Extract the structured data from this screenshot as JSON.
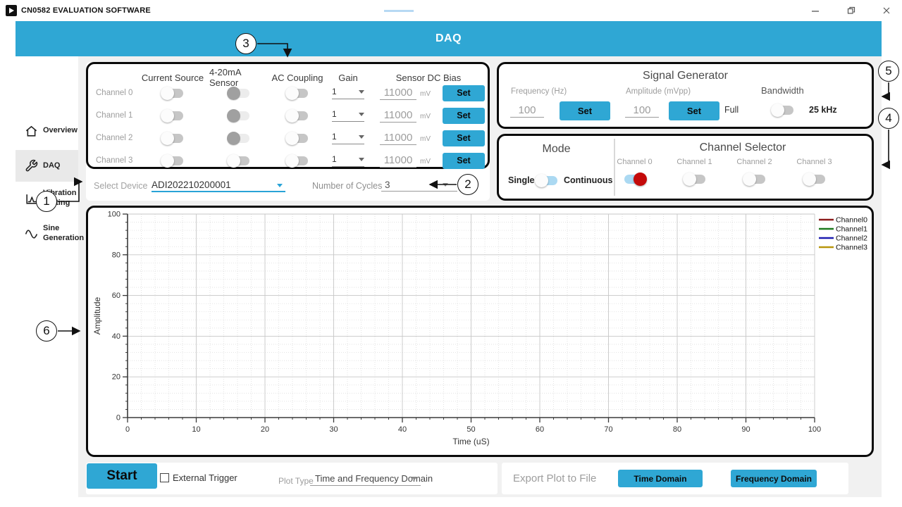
{
  "titlebar": {
    "app_title": "CN0582 EVALUATION SOFTWARE"
  },
  "header": {
    "title": "DAQ"
  },
  "sidebar": {
    "items": [
      {
        "label": "Overview",
        "icon": "home-icon",
        "active": false
      },
      {
        "label": "DAQ",
        "icon": "wrench-icon",
        "active": true
      },
      {
        "label": "Vibration Testing",
        "icon": "vibration-chart-icon",
        "active": false
      },
      {
        "label": "Sine Generation",
        "icon": "sine-wave-icon",
        "active": false
      }
    ]
  },
  "daq_panel": {
    "columns": {
      "current_source": "Current Source",
      "sensor_420": "4-20mA Sensor",
      "ac_coupling": "AC Coupling",
      "gain": "Gain",
      "dc_bias": "Sensor DC Bias"
    },
    "set_label": "Set",
    "rows": [
      {
        "label": "Channel 0",
        "current_source": "off",
        "sensor_420": "disabled",
        "ac_coupling": "off",
        "gain": "1",
        "bias": "11000",
        "unit": "mV"
      },
      {
        "label": "Channel 1",
        "current_source": "off",
        "sensor_420": "disabled",
        "ac_coupling": "off",
        "gain": "1",
        "bias": "11000",
        "unit": "mV"
      },
      {
        "label": "Channel 2",
        "current_source": "off",
        "sensor_420": "disabled",
        "ac_coupling": "off",
        "gain": "1",
        "bias": "11000",
        "unit": "mV"
      },
      {
        "label": "Channel 3",
        "current_source": "off",
        "sensor_420": "off",
        "ac_coupling": "off",
        "gain": "1",
        "bias": "11000",
        "unit": "mV"
      }
    ]
  },
  "device_row": {
    "label": "Select Device",
    "value": "ADI202210200001",
    "cycles_label": "Number of Cycles",
    "cycles_value": "3"
  },
  "signal_generator": {
    "title": "Signal Generator",
    "frequency_label": "Frequency (Hz)",
    "frequency_value": "100",
    "set_label": "Set",
    "amplitude_label": "Amplitude (mVpp)",
    "amplitude_value": "100",
    "bandwidth_label": "Bandwidth",
    "bandwidth_full": "Full",
    "bandwidth_25k": "25 kHz",
    "bandwidth_toggle": "off"
  },
  "mode_panel": {
    "title": "Mode",
    "single_label": "Single",
    "continuous_label": "Continuous",
    "toggle": "blue"
  },
  "channel_selector": {
    "title": "Channel Selector",
    "channels": [
      {
        "label": "Channel 0",
        "toggle": "red"
      },
      {
        "label": "Channel 1",
        "toggle": "off"
      },
      {
        "label": "Channel 2",
        "toggle": "off"
      },
      {
        "label": "Channel 3",
        "toggle": "off"
      }
    ]
  },
  "chart_data": {
    "type": "line",
    "title": "",
    "xlabel": "Time (uS)",
    "ylabel": "Amplitude",
    "xlim": [
      0,
      100
    ],
    "ylim": [
      0,
      100
    ],
    "x_ticks": [
      0,
      10,
      20,
      30,
      40,
      50,
      60,
      70,
      80,
      90,
      100
    ],
    "y_ticks": [
      0,
      20,
      40,
      60,
      80,
      100
    ],
    "x_tick_step": 10,
    "y_tick_step": 20,
    "x_minor_step": 2,
    "y_minor_step": 4,
    "grid": true,
    "legend_position": "right-top",
    "series": [
      {
        "name": "Channel0",
        "color": "#8B1A1A",
        "x": [],
        "y": []
      },
      {
        "name": "Channel1",
        "color": "#1E7A1E",
        "x": [],
        "y": []
      },
      {
        "name": "Channel2",
        "color": "#1C1CB0",
        "x": [],
        "y": []
      },
      {
        "name": "Channel3",
        "color": "#B8960C",
        "x": [],
        "y": []
      }
    ]
  },
  "bottom_bar": {
    "start_label": "Start",
    "external_trigger_label": "External Trigger",
    "external_trigger_checked": false,
    "plot_type_label": "Plot Type",
    "plot_type_value": "Time and Frequency Domain",
    "export_label": "Export Plot to File",
    "time_domain_label": "Time Domain",
    "frequency_domain_label": "Frequency Domain"
  },
  "callouts": [
    {
      "label": "1"
    },
    {
      "label": "2"
    },
    {
      "label": "3"
    },
    {
      "label": "4"
    },
    {
      "label": "5"
    },
    {
      "label": "6"
    }
  ],
  "colors": {
    "accent_blue": "#2FA7D4",
    "toggle_on_track": "#ABD9F2",
    "toggle_on_knob_red": "#C40A0A",
    "panel_border": "#0A0A0A"
  }
}
